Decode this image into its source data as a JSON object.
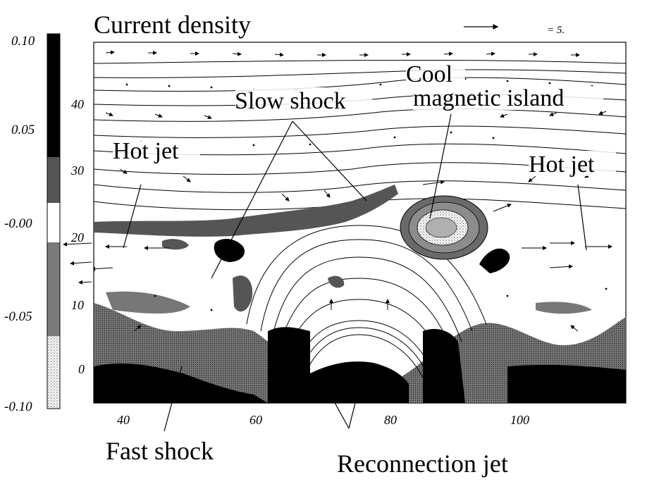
{
  "title": "Current density",
  "reference_vector_label": "= 5.",
  "colorbar": {
    "ticks": [
      "0.10",
      "0.05",
      "-0.00",
      "-0.05",
      "-0.10"
    ]
  },
  "x_axis": {
    "ticks": [
      "40",
      "60",
      "80",
      "100"
    ]
  },
  "y_axis": {
    "ticks": [
      "40",
      "30",
      "20",
      "10",
      "0"
    ]
  },
  "annotations": {
    "slow_shock": "Slow shock",
    "cool_island_line1": "Cool",
    "cool_island_line2": "magnetic island",
    "hot_jet_left": "Hot jet",
    "hot_jet_right": "Hot jet",
    "fast_shock": "Fast shock",
    "reconnection_jet": "Reconnection jet"
  },
  "colors": {
    "ink": "#000000",
    "dark_gray": "#5a5a5a",
    "mid_gray": "#8c8c8c",
    "light_gray": "#c8c8c8",
    "paper": "#ffffff"
  }
}
